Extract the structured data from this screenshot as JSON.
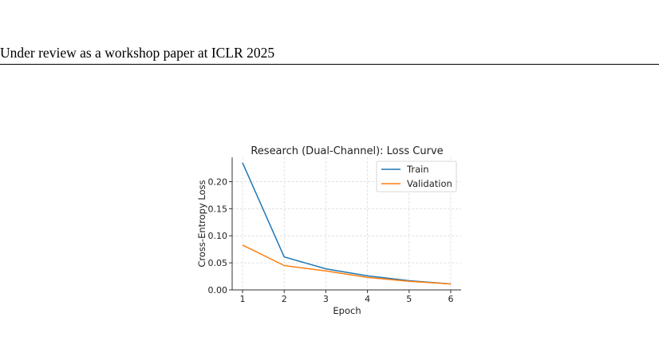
{
  "page": {
    "running_header": "Under review as a workshop paper at ICLR 2025"
  },
  "colors": {
    "train": "#1f77b4",
    "validation": "#ff7f0e",
    "grid": "#d9d9d9",
    "axis": "#333333"
  },
  "chart_data": {
    "type": "line",
    "title": "Research (Dual-Channel): Loss Curve",
    "xlabel": "Epoch",
    "ylabel": "Cross-Entropy Loss",
    "x": [
      1,
      2,
      3,
      4,
      5,
      6
    ],
    "x_ticks": [
      "1",
      "2",
      "3",
      "4",
      "5",
      "6"
    ],
    "y_ticks": [
      "0.00",
      "0.05",
      "0.10",
      "0.15",
      "0.20"
    ],
    "y_tick_values": [
      0.0,
      0.05,
      0.1,
      0.15,
      0.2
    ],
    "xlim": [
      0.75,
      6.25
    ],
    "ylim": [
      0.0,
      0.245
    ],
    "grid": true,
    "legend_position": "top-right",
    "series": [
      {
        "name": "Train",
        "values": [
          0.235,
          0.061,
          0.039,
          0.026,
          0.017,
          0.011
        ]
      },
      {
        "name": "Validation",
        "values": [
          0.083,
          0.045,
          0.035,
          0.023,
          0.016,
          0.011
        ]
      }
    ]
  }
}
